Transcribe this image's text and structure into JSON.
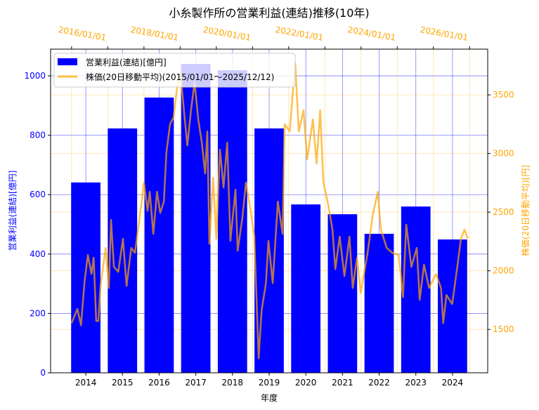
{
  "chart_data": {
    "type": "bar+line",
    "title": "小糸製作所の営業利益(連結)推移(10年)",
    "xlabel": "年度",
    "ylabel_left": "営業利益(連結)[億円]",
    "ylabel_right": "株価(20日移動平均)[円]",
    "categories": [
      "2014",
      "2015",
      "2016",
      "2017",
      "2018",
      "2019",
      "2020",
      "2021",
      "2022",
      "2023",
      "2024"
    ],
    "bar_series": {
      "name": "営業利益(連結)[億円]",
      "color": "#0000ff",
      "values": [
        641,
        823,
        927,
        1040,
        1019,
        823,
        567,
        534,
        468,
        560,
        449
      ]
    },
    "ylim_left": [
      0,
      1090
    ],
    "yticks_left": [
      0,
      200,
      400,
      600,
      800,
      1000
    ],
    "xlim_bottom": [
      2013.04,
      2024.96
    ],
    "line_series": {
      "name": "株価(20日移動平均)(2015/01/01～2025/12/12)",
      "color": "#ffa500",
      "x": [
        2015.0,
        2015.16,
        2015.26,
        2015.36,
        2015.45,
        2015.55,
        2015.61,
        2015.68,
        2015.74,
        2015.8,
        2015.94,
        2016.03,
        2016.09,
        2016.17,
        2016.29,
        2016.42,
        2016.52,
        2016.65,
        2016.75,
        2016.85,
        2017.0,
        2017.1,
        2017.16,
        2017.26,
        2017.36,
        2017.45,
        2017.55,
        2017.62,
        2017.72,
        2017.82,
        2017.91,
        2018.01,
        2018.11,
        2018.2,
        2018.3,
        2018.4,
        2018.5,
        2018.6,
        2018.69,
        2018.75,
        2018.81,
        2018.91,
        2019.0,
        2019.1,
        2019.2,
        2019.3,
        2019.39,
        2019.53,
        2019.59,
        2019.72,
        2019.82,
        2019.95,
        2020.05,
        2020.17,
        2020.25,
        2020.37,
        2020.44,
        2020.56,
        2020.7,
        2020.83,
        2020.89,
        2021.03,
        2021.12,
        2021.18,
        2021.28,
        2021.41,
        2021.51,
        2021.67,
        2021.77,
        2021.87,
        2021.96,
        2022.1,
        2022.21,
        2022.29,
        2022.41,
        2022.54,
        2022.68,
        2022.77,
        2022.89,
        2022.99,
        2023.18,
        2023.32,
        2023.46,
        2023.55,
        2023.71,
        2023.86,
        2024.04,
        2024.16,
        2024.25,
        2024.39,
        2024.54,
        2024.62,
        2024.74,
        2024.88,
        2025.07,
        2025.21,
        2025.27,
        2025.36,
        2025.52,
        2025.66,
        2025.76,
        2025.86,
        2025.95
      ],
      "y": [
        1554,
        1674,
        1536,
        1913,
        2135,
        1973,
        2111,
        1572,
        1572,
        1871,
        2195,
        1853,
        2434,
        2033,
        1991,
        2273,
        1871,
        2195,
        2153,
        2375,
        2752,
        2512,
        2674,
        2315,
        2674,
        2494,
        2590,
        3010,
        3249,
        3309,
        3549,
        3692,
        3351,
        3069,
        3369,
        3609,
        3291,
        3093,
        2830,
        3189,
        2231,
        2794,
        2273,
        3033,
        2710,
        3093,
        2255,
        2692,
        2171,
        2452,
        2752,
        2512,
        2291,
        1254,
        1656,
        1895,
        2255,
        1895,
        2590,
        2315,
        3249,
        3189,
        3549,
        3770,
        3189,
        3369,
        2950,
        3291,
        2914,
        3369,
        2752,
        2554,
        2351,
        2015,
        2291,
        1955,
        2291,
        1853,
        2111,
        1811,
        2153,
        2470,
        2674,
        2351,
        2195,
        2153,
        2135,
        1775,
        2393,
        2033,
        2195,
        1752,
        2051,
        1853,
        1973,
        1853,
        1554,
        1793,
        1716,
        2033,
        2273,
        2351,
        2273
      ]
    },
    "ylim_right": [
      1130,
      3890
    ],
    "yticks_right": [
      1500,
      2000,
      2500,
      3000,
      3500
    ],
    "xlim_top": [
      2014.42,
      2026.5
    ],
    "xticks_top": [
      2015,
      2016,
      2017,
      2018,
      2019,
      2020,
      2021,
      2022,
      2023,
      2024,
      2025,
      2026
    ],
    "xtick_labels_top": [
      {
        "year": 2016,
        "label": "2016/01/01"
      },
      {
        "year": 2018,
        "label": "2018/01/01"
      },
      {
        "year": 2020,
        "label": "2020/01/01"
      },
      {
        "year": 2022,
        "label": "2022/01/01"
      },
      {
        "year": 2024,
        "label": "2024/01/01"
      },
      {
        "year": 2026,
        "label": "2026/01/01"
      }
    ],
    "grid": true,
    "legend": {
      "placement": "top-left",
      "entries": [
        "営業利益(連結)[億円]",
        "株価(20日移動平均)(2015/01/01～2025/12/12)"
      ]
    }
  }
}
